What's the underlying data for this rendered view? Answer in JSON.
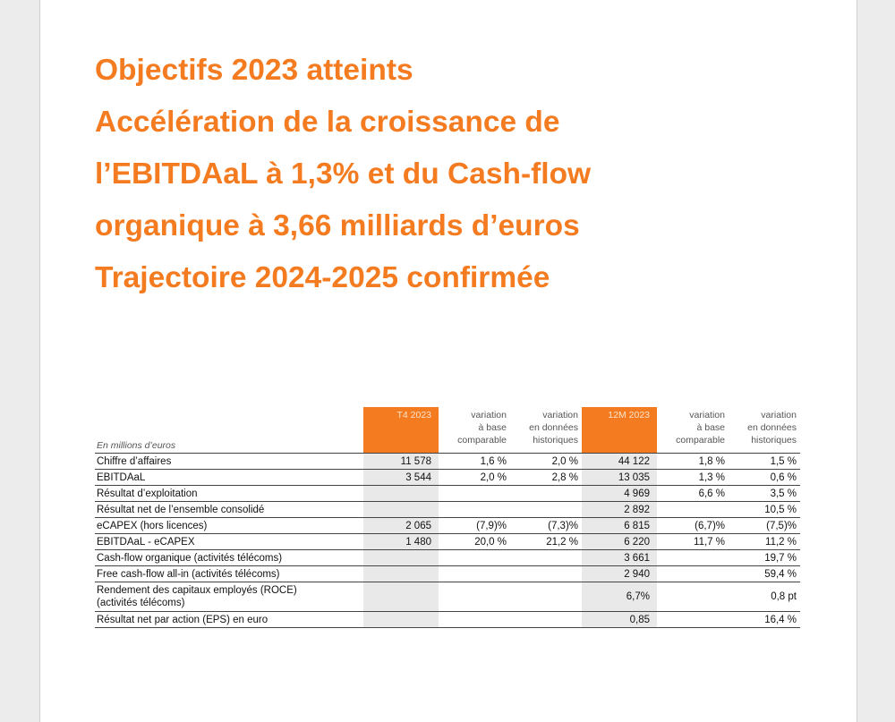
{
  "headline": [
    "Objectifs 2023 atteints",
    "Accélération de la croissance de",
    "l’EBITDAaL à 1,3% et du Cash-flow",
    "organique à 3,66 milliards d’euros",
    "Trajectoire 2024-2025 confirmée"
  ],
  "table": {
    "unit": "En millions d’euros",
    "headers": {
      "t4": "T4 2023",
      "t4_var_comp": [
        "variation",
        "à base",
        "comparable"
      ],
      "t4_var_hist": [
        "variation",
        "en données",
        "historiques"
      ],
      "m12": "12M 2023",
      "m12_var_comp": [
        "variation",
        "à base",
        "comparable"
      ],
      "m12_var_hist": [
        "variation",
        "en données",
        "historiques"
      ]
    },
    "rows": [
      {
        "label": [
          "Chiffre d’affaires"
        ],
        "t4": "11 578",
        "t4_comp": "1,6 %",
        "t4_hist": "2,0 %",
        "m12": "44 122",
        "m12_comp": "1,8 %",
        "m12_hist": "1,5 %"
      },
      {
        "label": [
          "EBITDAaL"
        ],
        "t4": "3 544",
        "t4_comp": "2,0 %",
        "t4_hist": "2,8 %",
        "m12": "13 035",
        "m12_comp": "1,3 %",
        "m12_hist": "0,6 %"
      },
      {
        "label": [
          "Résultat d’exploitation"
        ],
        "t4": "",
        "t4_comp": "",
        "t4_hist": "",
        "m12": "4 969",
        "m12_comp": "6,6 %",
        "m12_hist": "3,5 %"
      },
      {
        "label": [
          "Résultat net de l’ensemble consolidé"
        ],
        "t4": "",
        "t4_comp": "",
        "t4_hist": "",
        "m12": "2 892",
        "m12_comp": "",
        "m12_hist": "10,5 %"
      },
      {
        "label": [
          "eCAPEX (hors licences)"
        ],
        "t4": "2 065",
        "t4_comp": "(7,9)%",
        "t4_hist": "(7,3)%",
        "m12": "6 815",
        "m12_comp": "(6,7)%",
        "m12_hist": "(7,5)%"
      },
      {
        "label": [
          "EBITDAaL - eCAPEX"
        ],
        "t4": "1 480",
        "t4_comp": "20,0 %",
        "t4_hist": "21,2 %",
        "m12": "6 220",
        "m12_comp": "11,7 %",
        "m12_hist": "11,2 %"
      },
      {
        "label": [
          "Cash-flow organique (activités télécoms)"
        ],
        "t4": "",
        "t4_comp": "",
        "t4_hist": "",
        "m12": "3 661",
        "m12_comp": "",
        "m12_hist": "19,7 %"
      },
      {
        "label": [
          "Free cash-flow all-in (activités télécoms)"
        ],
        "t4": "",
        "t4_comp": "",
        "t4_hist": "",
        "m12": "2 940",
        "m12_comp": "",
        "m12_hist": "59,4 %"
      },
      {
        "label": [
          "Rendement des capitaux employés (ROCE)",
          "(activités télécoms)"
        ],
        "t4": "",
        "t4_comp": "",
        "t4_hist": "",
        "m12": "6,7%",
        "m12_comp": "",
        "m12_hist": "0,8 pt"
      },
      {
        "label": [
          "Résultat net par action (EPS) en euro"
        ],
        "t4": "",
        "t4_comp": "",
        "t4_hist": "",
        "m12": "0,85",
        "m12_comp": "",
        "m12_hist": "16,4 %"
      }
    ]
  }
}
